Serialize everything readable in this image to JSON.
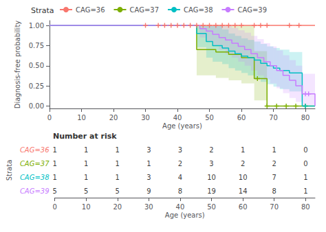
{
  "chart_data": [
    {
      "type": "step",
      "xlabel": "Age (years)",
      "ylabel": "Diagnosis-free probability",
      "legend_title": "Strata",
      "legend": "top",
      "grid": false,
      "xlim": [
        0,
        83
      ],
      "ylim": [
        -0.03,
        1.06
      ],
      "xticks": [
        0,
        10,
        20,
        30,
        40,
        50,
        60,
        70,
        80
      ],
      "yticks": [
        {
          "value": 0,
          "label": "0.00"
        },
        {
          "value": 0.25,
          "label": "0.25"
        },
        {
          "value": 0.5,
          "label": "0.50"
        },
        {
          "value": 0.75,
          "label": "0.75"
        },
        {
          "value": 1,
          "label": "1.00"
        }
      ],
      "series": [
        {
          "name": "CAG=36",
          "color": "#F8766D",
          "marker": "plus",
          "x": [
            0,
            83
          ],
          "values": [
            1.0,
            1.0
          ],
          "ci_low": [
            1.0,
            1.0
          ],
          "ci_high": [
            1.0,
            1.0
          ],
          "censor_x": [
            30,
            34,
            36,
            38,
            40,
            42,
            44,
            46,
            48,
            50,
            52,
            54,
            56,
            58,
            60,
            64,
            66,
            68,
            75,
            78
          ],
          "censor_y": [
            1.0,
            1.0,
            1.0,
            1.0,
            1.0,
            1.0,
            1.0,
            1.0,
            1.0,
            1.0,
            1.0,
            1.0,
            1.0,
            1.0,
            1.0,
            1.0,
            1.0,
            1.0,
            1.0,
            1.0
          ]
        },
        {
          "name": "CAG=37",
          "color": "#7CAE00",
          "marker": "plus",
          "x": [
            0,
            46,
            52,
            56,
            60,
            64,
            68,
            83
          ],
          "values": [
            1.0,
            0.7,
            0.67,
            0.64,
            0.6,
            0.34,
            0.0,
            0.0
          ],
          "ci_low": [
            1.0,
            0.38,
            0.35,
            0.32,
            0.28,
            0.07,
            0.0,
            0.0
          ],
          "ci_high": [
            1.0,
            1.0,
            1.0,
            1.0,
            1.0,
            0.68,
            0.0,
            0.0
          ],
          "censor_x": [
            65,
            68,
            71,
            74,
            77,
            80
          ],
          "censor_y": [
            0.34,
            0.0,
            0.0,
            0.0,
            0.0,
            0.0
          ]
        },
        {
          "name": "CAG=38",
          "color": "#00BFC4",
          "marker": "plus",
          "x": [
            0,
            46,
            49,
            51,
            54,
            56,
            58,
            60,
            62,
            64,
            66,
            68,
            70,
            72,
            75,
            79,
            83
          ],
          "values": [
            1.0,
            0.9,
            0.8,
            0.75,
            0.72,
            0.68,
            0.65,
            0.62,
            0.6,
            0.57,
            0.53,
            0.5,
            0.47,
            0.44,
            0.41,
            0.0,
            0.0
          ],
          "ci_low": [
            1.0,
            0.73,
            0.6,
            0.55,
            0.52,
            0.47,
            0.44,
            0.41,
            0.38,
            0.34,
            0.3,
            0.27,
            0.24,
            0.21,
            0.18,
            0.0,
            0.0
          ],
          "ci_high": [
            1.0,
            1.0,
            1.0,
            1.0,
            0.95,
            0.9,
            0.87,
            0.84,
            0.82,
            0.8,
            0.77,
            0.74,
            0.72,
            0.7,
            0.67,
            0.0,
            0.0
          ],
          "censor_x": [
            80
          ],
          "censor_y": [
            0.0
          ]
        },
        {
          "name": "CAG=39",
          "color": "#C77CFF",
          "marker": "plus",
          "x": [
            0,
            47,
            49,
            51,
            53,
            55,
            57,
            59,
            61,
            63,
            65,
            67,
            69,
            71,
            73,
            75,
            77,
            79,
            83
          ],
          "values": [
            1.0,
            0.96,
            0.93,
            0.89,
            0.85,
            0.82,
            0.78,
            0.74,
            0.7,
            0.65,
            0.6,
            0.55,
            0.5,
            0.44,
            0.38,
            0.32,
            0.25,
            0.15,
            0.0
          ],
          "ci_low": [
            1.0,
            0.85,
            0.8,
            0.75,
            0.7,
            0.65,
            0.6,
            0.55,
            0.5,
            0.44,
            0.38,
            0.33,
            0.28,
            0.22,
            0.16,
            0.1,
            0.05,
            0.01,
            0.0
          ],
          "ci_high": [
            1.0,
            1.0,
            1.0,
            1.0,
            1.0,
            1.0,
            0.97,
            0.94,
            0.91,
            0.87,
            0.83,
            0.78,
            0.74,
            0.69,
            0.63,
            0.57,
            0.5,
            0.4,
            0.0
          ],
          "censor_x": [
            80,
            81
          ],
          "censor_y": [
            0.15,
            0.15
          ]
        }
      ]
    },
    {
      "type": "table",
      "title": "Number at risk",
      "ylabel": "Strata",
      "xlabel": "Age (years)",
      "xlim": [
        0,
        83
      ],
      "x": [
        0,
        10,
        20,
        30,
        40,
        50,
        60,
        70,
        80
      ],
      "series": [
        {
          "name": "CAG=36",
          "color": "#F8766D",
          "values": [
            1,
            1,
            1,
            3,
            3,
            2,
            1,
            1,
            0
          ]
        },
        {
          "name": "CAG=37",
          "color": "#7CAE00",
          "values": [
            1,
            1,
            1,
            1,
            2,
            3,
            2,
            2,
            0
          ]
        },
        {
          "name": "CAG=38",
          "color": "#00BFC4",
          "values": [
            1,
            1,
            1,
            3,
            4,
            10,
            10,
            7,
            1
          ]
        },
        {
          "name": "CAG=39",
          "color": "#C77CFF",
          "values": [
            5,
            5,
            5,
            9,
            8,
            19,
            14,
            8,
            1
          ]
        }
      ]
    }
  ]
}
